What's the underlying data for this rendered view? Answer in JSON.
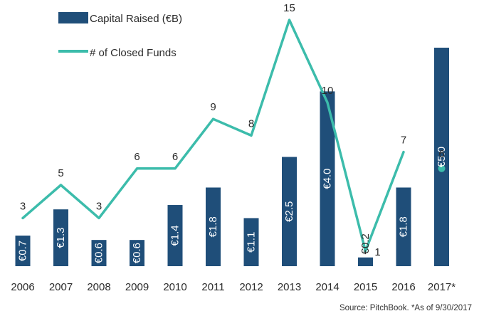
{
  "chart_data": {
    "type": "bar",
    "categories": [
      "2006",
      "2007",
      "2008",
      "2009",
      "2010",
      "2011",
      "2012",
      "2013",
      "2014",
      "2015",
      "2016",
      "2017*"
    ],
    "series": [
      {
        "name": "Capital Raised (€B)",
        "type": "bar",
        "color": "#1f4e79",
        "values": [
          0.7,
          1.3,
          0.6,
          0.6,
          1.4,
          1.8,
          1.1,
          2.5,
          4.0,
          0.2,
          1.8,
          5.0
        ],
        "labels": [
          "€0.7",
          "€1.3",
          "€0.6",
          "€0.6",
          "€1.4",
          "€1.8",
          "€1.1",
          "€2.5",
          "€4.0",
          "€0.2",
          "€1.8",
          "€5.0"
        ]
      },
      {
        "name": "# of Closed Funds",
        "type": "line",
        "color": "#3cbcab",
        "values": [
          3,
          5,
          3,
          6,
          6,
          9,
          8,
          15,
          10,
          1,
          7,
          6
        ],
        "line_break_before_last": true
      }
    ],
    "legend_position": "top-left",
    "grid": false
  },
  "source_note": "Source: PitchBook. *As of 9/30/2017"
}
